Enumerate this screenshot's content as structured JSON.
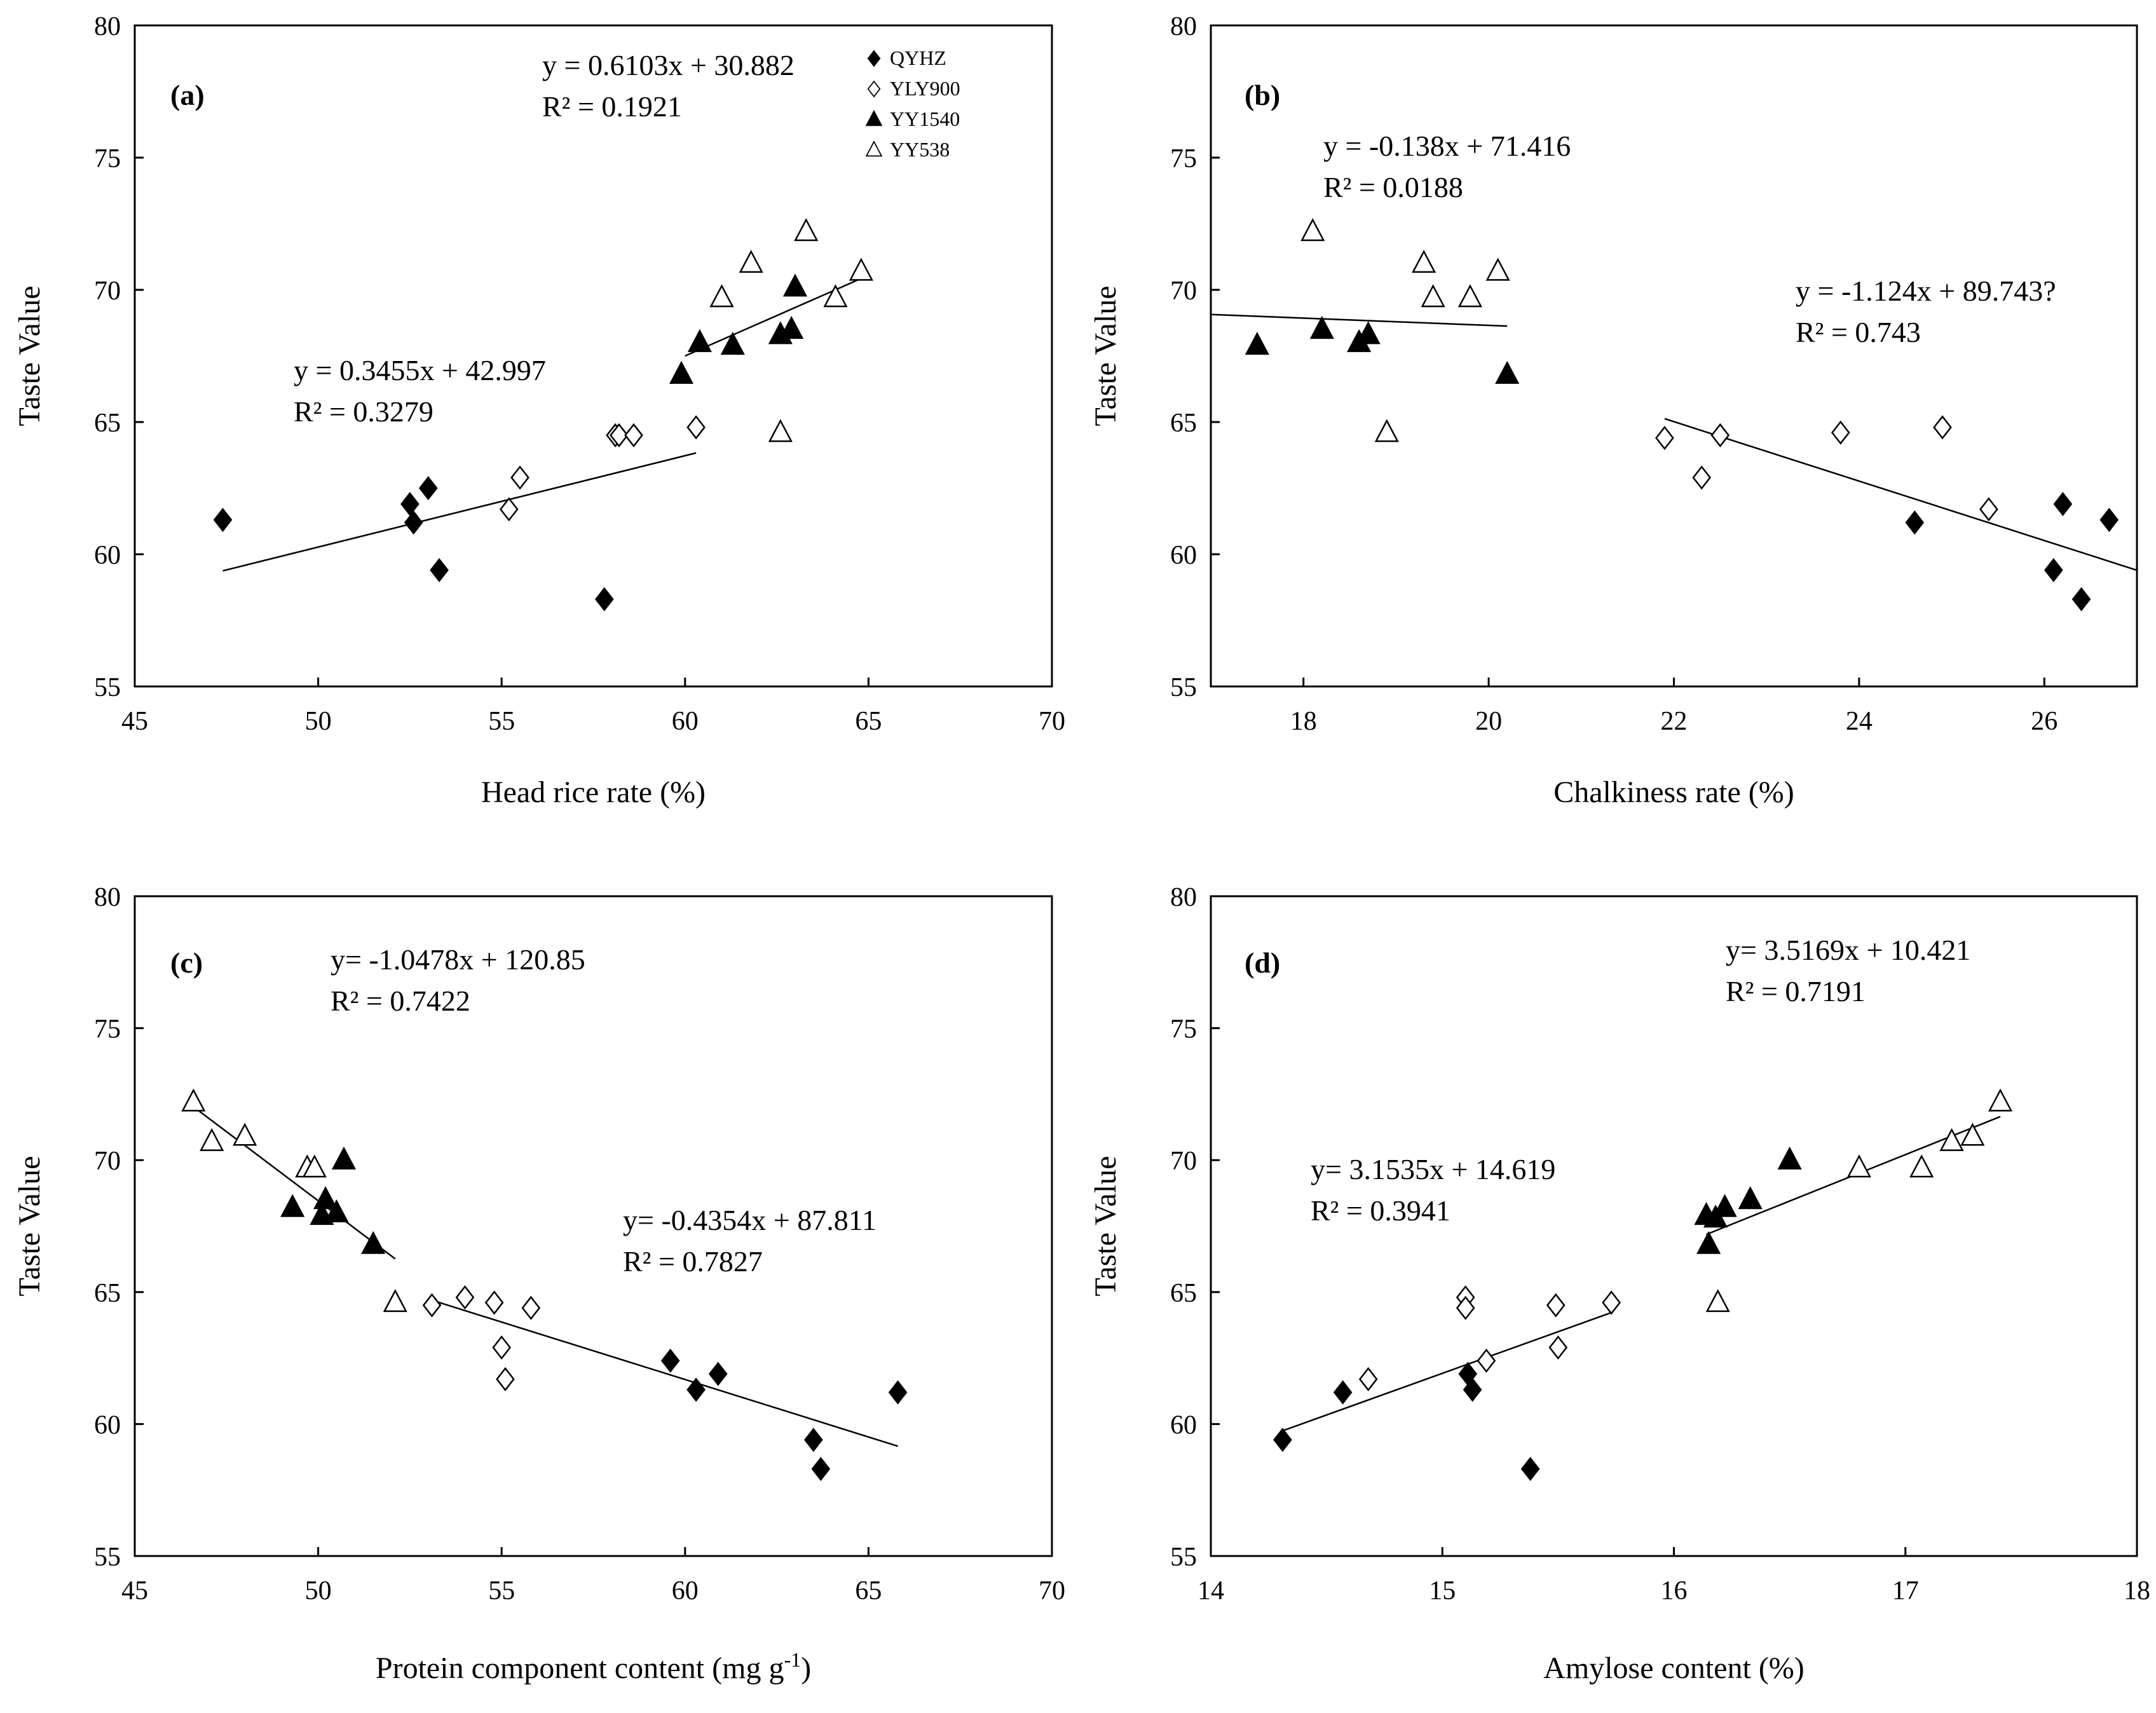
{
  "chart_data": [
    {
      "type": "scatter",
      "panel_label": "(a)",
      "xlabel": "Head rice rate (%)",
      "ylabel": "Taste Value",
      "xlim": [
        45,
        70
      ],
      "ylim": [
        55,
        80
      ],
      "xticks": [
        45,
        50,
        55,
        60,
        65,
        70
      ],
      "yticks": [
        55,
        60,
        65,
        70,
        75,
        80
      ],
      "legend": [
        "QYHZ",
        "YLY900",
        "YY1540",
        "YY538"
      ],
      "series": [
        {
          "name": "QYHZ",
          "points": [
            [
              47.4,
              61.3
            ],
            [
              52.5,
              61.9
            ],
            [
              52.6,
              61.2
            ],
            [
              53.0,
              62.5
            ],
            [
              53.3,
              59.4
            ],
            [
              57.8,
              58.3
            ]
          ]
        },
        {
          "name": "YLY900",
          "points": [
            [
              55.2,
              61.7
            ],
            [
              55.5,
              62.9
            ],
            [
              58.1,
              64.5
            ],
            [
              58.2,
              64.5
            ],
            [
              58.6,
              64.5
            ],
            [
              60.3,
              64.8
            ]
          ]
        },
        {
          "name": "YY1540",
          "points": [
            [
              59.9,
              66.8
            ],
            [
              60.4,
              68.0
            ],
            [
              61.3,
              67.9
            ],
            [
              62.6,
              68.3
            ],
            [
              62.9,
              68.5
            ],
            [
              63.0,
              70.1
            ]
          ]
        },
        {
          "name": "YY538",
          "points": [
            [
              61.0,
              69.7
            ],
            [
              61.8,
              71.0
            ],
            [
              62.6,
              64.6
            ],
            [
              63.3,
              72.2
            ],
            [
              64.1,
              69.7
            ],
            [
              64.8,
              70.7
            ]
          ]
        }
      ],
      "fits": [
        {
          "label": "y = 0.3455x + 42.997",
          "r2": "R² = 0.3279",
          "x_range": [
            47.4,
            60.3
          ],
          "slope": 0.3455,
          "intercept": 42.997
        },
        {
          "label": "y = 0.6103x + 30.882",
          "r2": "R² = 0.1921",
          "x_range": [
            60.0,
            64.8
          ],
          "slope": 0.6103,
          "intercept": 30.882
        }
      ]
    },
    {
      "type": "scatter",
      "panel_label": "(b)",
      "xlabel": "Chalkiness rate (%)",
      "ylabel": "Taste Value",
      "xlim": [
        17,
        27
      ],
      "ylim": [
        55,
        80
      ],
      "xticks": [
        18,
        20,
        22,
        24,
        26
      ],
      "yticks": [
        55,
        60,
        65,
        70,
        75,
        80
      ],
      "series": [
        {
          "name": "QYHZ",
          "points": [
            [
              24.6,
              61.2
            ],
            [
              26.1,
              59.4
            ],
            [
              26.2,
              61.9
            ],
            [
              26.4,
              58.3
            ],
            [
              26.7,
              61.3
            ]
          ]
        },
        {
          "name": "YLY900",
          "points": [
            [
              21.9,
              64.4
            ],
            [
              22.3,
              62.9
            ],
            [
              22.5,
              64.5
            ],
            [
              23.8,
              64.6
            ],
            [
              24.9,
              64.8
            ],
            [
              25.4,
              61.7
            ]
          ]
        },
        {
          "name": "YY1540",
          "points": [
            [
              17.5,
              67.9
            ],
            [
              18.2,
              68.5
            ],
            [
              18.6,
              68.0
            ],
            [
              18.7,
              68.3
            ],
            [
              20.2,
              66.8
            ]
          ]
        },
        {
          "name": "YY538",
          "points": [
            [
              18.1,
              72.2
            ],
            [
              18.9,
              64.6
            ],
            [
              19.3,
              71.0
            ],
            [
              19.4,
              69.7
            ],
            [
              19.8,
              69.7
            ],
            [
              20.1,
              70.7
            ]
          ]
        }
      ],
      "fits": [
        {
          "label": "y = -0.138x + 71.416",
          "r2": "R² = 0.0188",
          "x_range": [
            17.0,
            20.2
          ],
          "slope": -0.138,
          "intercept": 71.416
        },
        {
          "label": "y = -1.124x + 89.743?",
          "r2": "R² = 0.743",
          "x_range": [
            21.9,
            27.0
          ],
          "slope": -1.124,
          "intercept": 89.743
        }
      ]
    },
    {
      "type": "scatter",
      "panel_label": "(c)",
      "xlabel": "Protein component content (mg g",
      "xlabel_sup": "-1",
      "xlabel_end": ")",
      "ylabel": "Taste Value",
      "xlim": [
        45,
        70
      ],
      "ylim": [
        55,
        80
      ],
      "xticks": [
        45,
        50,
        55,
        60,
        65,
        70
      ],
      "yticks": [
        55,
        60,
        65,
        70,
        75,
        80
      ],
      "series": [
        {
          "name": "QYHZ",
          "points": [
            [
              59.6,
              62.4
            ],
            [
              60.3,
              61.3
            ],
            [
              60.9,
              61.9
            ],
            [
              63.5,
              59.4
            ],
            [
              63.7,
              58.3
            ],
            [
              65.8,
              61.2
            ]
          ]
        },
        {
          "name": "YLY900",
          "points": [
            [
              53.1,
              64.5
            ],
            [
              54.0,
              64.8
            ],
            [
              54.8,
              64.6
            ],
            [
              55.0,
              62.9
            ],
            [
              55.1,
              61.7
            ],
            [
              55.8,
              64.4
            ]
          ]
        },
        {
          "name": "YY1540",
          "points": [
            [
              49.3,
              68.2
            ],
            [
              50.1,
              67.9
            ],
            [
              50.2,
              68.5
            ],
            [
              50.5,
              68.0
            ],
            [
              50.7,
              70.0
            ],
            [
              51.5,
              66.8
            ]
          ]
        },
        {
          "name": "YY538",
          "points": [
            [
              46.6,
              72.2
            ],
            [
              47.1,
              70.7
            ],
            [
              48.0,
              70.9
            ],
            [
              49.7,
              69.7
            ],
            [
              49.9,
              69.7
            ],
            [
              52.1,
              64.6
            ]
          ]
        }
      ],
      "fits": [
        {
          "label": "y= -1.0478x + 120.85",
          "r2": "R² = 0.7422",
          "x_range": [
            46.6,
            52.1
          ],
          "slope": -1.0478,
          "intercept": 120.85
        },
        {
          "label": "y= -0.4354x + 87.811",
          "r2": "R² = 0.7827",
          "x_range": [
            53.1,
            65.8
          ],
          "slope": -0.4354,
          "intercept": 87.811
        }
      ]
    },
    {
      "type": "scatter",
      "panel_label": "(d)",
      "xlabel": "Amylose content (%)",
      "ylabel": "Taste Value",
      "xlim": [
        14,
        18
      ],
      "ylim": [
        55,
        80
      ],
      "xticks": [
        14,
        15,
        16,
        17,
        18
      ],
      "yticks": [
        55,
        60,
        65,
        70,
        75,
        80
      ],
      "series": [
        {
          "name": "QYHZ",
          "points": [
            [
              14.31,
              59.4
            ],
            [
              14.57,
              61.2
            ],
            [
              15.11,
              61.9
            ],
            [
              15.13,
              61.3
            ],
            [
              15.38,
              58.3
            ]
          ]
        },
        {
          "name": "YLY900",
          "points": [
            [
              14.68,
              61.7
            ],
            [
              15.1,
              64.8
            ],
            [
              15.1,
              64.4
            ],
            [
              15.19,
              62.4
            ],
            [
              15.49,
              64.5
            ],
            [
              15.5,
              62.9
            ],
            [
              15.73,
              64.6
            ]
          ]
        },
        {
          "name": "YY1540",
          "points": [
            [
              16.14,
              67.9
            ],
            [
              16.15,
              66.8
            ],
            [
              16.18,
              67.8
            ],
            [
              16.22,
              68.2
            ],
            [
              16.33,
              68.5
            ],
            [
              16.5,
              70.0
            ]
          ]
        },
        {
          "name": "YY538",
          "points": [
            [
              16.19,
              64.6
            ],
            [
              16.8,
              69.7
            ],
            [
              17.07,
              69.7
            ],
            [
              17.2,
              70.7
            ],
            [
              17.29,
              70.9
            ],
            [
              17.41,
              72.2
            ]
          ]
        }
      ],
      "fits": [
        {
          "label": "y= 3.1535x + 14.619",
          "r2": "R² = 0.3941",
          "x_range": [
            14.31,
            15.73
          ],
          "slope": 3.1535,
          "intercept": 14.619
        },
        {
          "label": "y= 3.5169x + 10.421",
          "r2": "R² = 0.7191",
          "x_range": [
            16.14,
            17.41
          ],
          "slope": 3.5169,
          "intercept": 10.421
        }
      ]
    }
  ]
}
